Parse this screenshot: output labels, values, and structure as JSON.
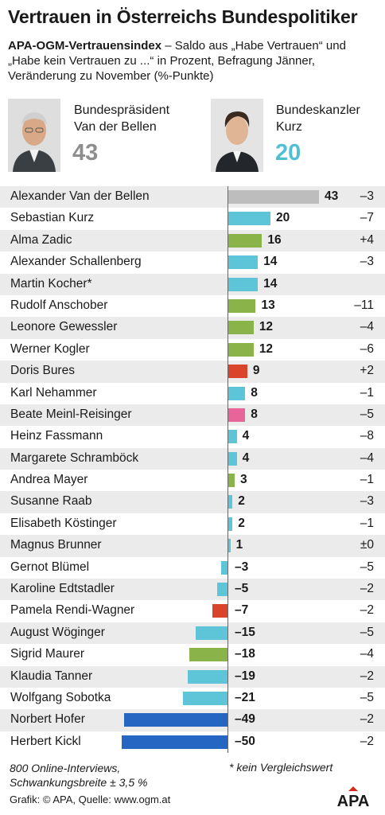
{
  "header": {
    "title": "Vertrauen in Österreichs Bundespolitiker",
    "subtitle_bold": "APA-OGM-Vertrauensindex",
    "subtitle_rest": " – Saldo aus „Habe Vertrauen“ und „Habe kein Vertrauen zu ...“ in Prozent, Befragung Jänner, Veränderung zu November (%-Punkte)"
  },
  "highlights": [
    {
      "role_line1": "Bundespräsident",
      "role_line2": "Van der Bellen",
      "value": "43",
      "color": "#8e8e8e"
    },
    {
      "role_line1": "Bundeskanzler",
      "role_line2": "Kurz",
      "value": "20",
      "color": "#4fc0d4"
    }
  ],
  "colors": {
    "grey": "#bdbdbd",
    "cyan": "#5ec4d8",
    "green": "#8ab34a",
    "red": "#d9442b",
    "pink": "#e8659a",
    "blue": "#2566c2"
  },
  "chart_data": {
    "type": "bar",
    "orientation": "horizontal",
    "unit": "Saldo in Prozent",
    "categories": [
      "Alexander Van der Bellen",
      "Sebastian Kurz",
      "Alma Zadic",
      "Alexander Schallenberg",
      "Martin Kocher*",
      "Rudolf Anschober",
      "Leonore Gewessler",
      "Werner Kogler",
      "Doris Bures",
      "Karl Nehammer",
      "Beate Meinl-Reisinger",
      "Heinz Fassmann",
      "Margarete Schramböck",
      "Andrea Mayer",
      "Susanne Raab",
      "Elisabeth Köstinger",
      "Magnus Brunner",
      "Gernot Blümel",
      "Karoline Edtstadler",
      "Pamela Rendi-Wagner",
      "August Wöginger",
      "Sigrid Maurer",
      "Klaudia Tanner",
      "Wolfgang Sobotka",
      "Norbert Hofer",
      "Herbert Kickl"
    ],
    "values": [
      43,
      20,
      16,
      14,
      14,
      13,
      12,
      12,
      9,
      8,
      8,
      4,
      4,
      3,
      2,
      2,
      1,
      -3,
      -5,
      -7,
      -15,
      -18,
      -19,
      -21,
      -49,
      -50
    ],
    "value_labels": [
      "43",
      "20",
      "16",
      "14",
      "14",
      "13",
      "12",
      "12",
      "9",
      "8",
      "8",
      "4",
      "4",
      "3",
      "2",
      "2",
      "1",
      "–3",
      "–5",
      "–7",
      "–15",
      "–18",
      "–19",
      "–21",
      "–49",
      "–50"
    ],
    "changes": [
      "–3",
      "–7",
      "+4",
      "–3",
      "",
      "–11",
      "–4",
      "–6",
      "+2",
      "–1",
      "–5",
      "–8",
      "–4",
      "–1",
      "–3",
      "–1",
      "±0",
      "–5",
      "–2",
      "–2",
      "–5",
      "–4",
      "–2",
      "–5",
      "–2",
      "–2"
    ],
    "bar_colors": [
      "grey",
      "cyan",
      "green",
      "cyan",
      "cyan",
      "green",
      "green",
      "green",
      "red",
      "cyan",
      "pink",
      "cyan",
      "cyan",
      "green",
      "cyan",
      "cyan",
      "cyan",
      "cyan",
      "cyan",
      "red",
      "cyan",
      "green",
      "cyan",
      "cyan",
      "blue",
      "blue"
    ]
  },
  "footer": {
    "note1": "800 Online-Interviews, Schwankungsbreite ± 3,5 %",
    "note2": "* kein Vergleichswert",
    "credit": "Grafik: © APA, Quelle: www.ogm.at",
    "logo": "APA"
  }
}
